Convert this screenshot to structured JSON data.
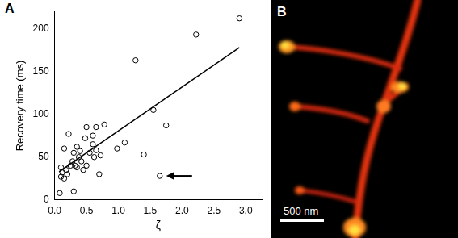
{
  "chart_data": {
    "type": "scatter",
    "panel_label": "A",
    "x": [
      0.08,
      0.1,
      0.1,
      0.12,
      0.15,
      0.15,
      0.18,
      0.2,
      0.22,
      0.25,
      0.28,
      0.3,
      0.3,
      0.32,
      0.35,
      0.35,
      0.38,
      0.4,
      0.42,
      0.45,
      0.48,
      0.5,
      0.5,
      0.55,
      0.6,
      0.6,
      0.62,
      0.65,
      0.65,
      0.7,
      0.72,
      0.78,
      0.98,
      1.1,
      1.27,
      1.4,
      1.55,
      1.65,
      1.75,
      2.22,
      2.9
    ],
    "values": [
      8,
      27,
      38,
      32,
      25,
      60,
      35,
      30,
      77,
      40,
      45,
      10,
      55,
      40,
      62,
      38,
      50,
      57,
      45,
      35,
      72,
      85,
      40,
      55,
      75,
      65,
      50,
      58,
      85,
      30,
      52,
      88,
      60,
      67,
      163,
      53,
      105,
      28,
      87,
      193,
      212
    ],
    "color": "#000000",
    "marker": "circle",
    "fit_line": {
      "x": [
        0.07,
        2.9
      ],
      "values": [
        33,
        178
      ],
      "color": "#000000"
    },
    "x_label": "ζ",
    "y_label": "Recovery time (ms)",
    "xlim": [
      0,
      3.25
    ],
    "ylim": [
      0,
      220
    ],
    "xticks": [
      {
        "value": 0,
        "label": "0.0"
      },
      0.5,
      {
        "value": 1,
        "label": "1.0"
      },
      1.5,
      {
        "value": 2,
        "label": "2.0"
      },
      2.5,
      {
        "value": 3,
        "label": "3.0"
      }
    ],
    "yticks": [
      0,
      50,
      100,
      150,
      200
    ],
    "grid": false,
    "annotations": [
      {
        "type": "arrow",
        "x": 1.65,
        "y": 28
      }
    ]
  },
  "image": {
    "panel_label": "B",
    "scale_bar_label": "500 nm"
  }
}
